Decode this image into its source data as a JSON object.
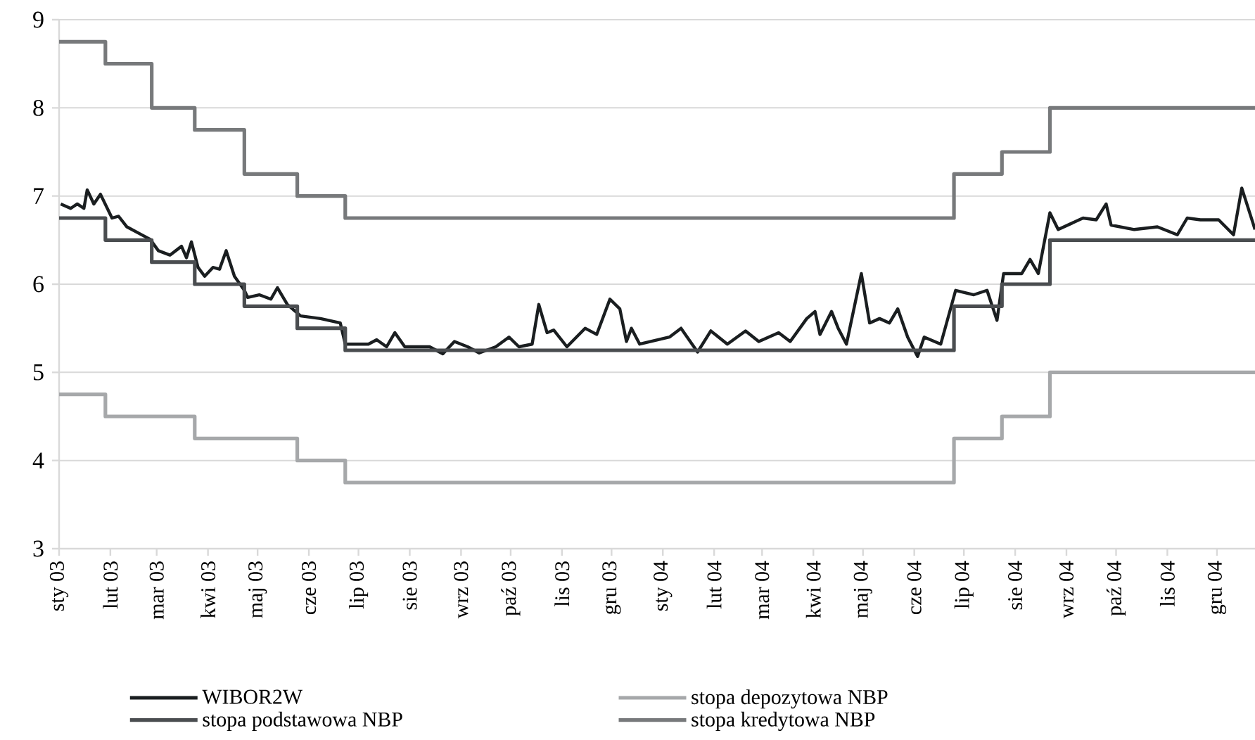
{
  "chart_data": {
    "type": "line",
    "xlim": [
      "2003-01-01",
      "2004-12-24"
    ],
    "ylim": [
      3,
      9
    ],
    "yticks": [
      3,
      4,
      5,
      6,
      7,
      8,
      9
    ],
    "xticks": [
      {
        "value": "2003-01-01",
        "label": "sty 03"
      },
      {
        "value": "2003-02-01",
        "label": "lut 03"
      },
      {
        "value": "2003-03-01",
        "label": "mar 03"
      },
      {
        "value": "2003-04-01",
        "label": "kwi 03"
      },
      {
        "value": "2003-05-01",
        "label": "maj 03"
      },
      {
        "value": "2003-06-01",
        "label": "cze 03"
      },
      {
        "value": "2003-07-01",
        "label": "lip 03"
      },
      {
        "value": "2003-08-01",
        "label": "sie 03"
      },
      {
        "value": "2003-09-01",
        "label": "wrz 03"
      },
      {
        "value": "2003-10-01",
        "label": "paź 03"
      },
      {
        "value": "2003-11-01",
        "label": "lis 03"
      },
      {
        "value": "2003-12-01",
        "label": "gru 03"
      },
      {
        "value": "2004-01-01",
        "label": "sty 04"
      },
      {
        "value": "2004-02-01",
        "label": "lut 04"
      },
      {
        "value": "2004-03-01",
        "label": "mar 04"
      },
      {
        "value": "2004-04-01",
        "label": "kwi 04"
      },
      {
        "value": "2004-05-01",
        "label": "maj 04"
      },
      {
        "value": "2004-06-01",
        "label": "cze 04"
      },
      {
        "value": "2004-07-01",
        "label": "lip 04"
      },
      {
        "value": "2004-08-01",
        "label": "sie 04"
      },
      {
        "value": "2004-09-01",
        "label": "wrz 04"
      },
      {
        "value": "2004-10-01",
        "label": "paź 04"
      },
      {
        "value": "2004-11-01",
        "label": "lis 04"
      },
      {
        "value": "2004-12-01",
        "label": "gru 04"
      }
    ],
    "grid": "y",
    "legend": "bottom",
    "series": [
      {
        "name": "WIBOR2W",
        "color": "#1a1e20",
        "x": [
          "2003-01-02",
          "2003-01-08",
          "2003-01-12",
          "2003-01-16",
          "2003-01-18",
          "2003-01-22",
          "2003-01-26",
          "2003-02-02",
          "2003-02-06",
          "2003-02-11",
          "2003-02-20",
          "2003-02-25",
          "2003-03-02",
          "2003-03-09",
          "2003-03-16",
          "2003-03-19",
          "2003-03-22",
          "2003-03-26",
          "2003-03-30",
          "2003-04-04",
          "2003-04-08",
          "2003-04-12",
          "2003-04-17",
          "2003-04-23",
          "2003-04-25",
          "2003-05-02",
          "2003-05-09",
          "2003-05-13",
          "2003-05-19",
          "2003-05-27",
          "2003-06-08",
          "2003-06-20",
          "2003-06-23",
          "2003-07-07",
          "2003-07-12",
          "2003-07-18",
          "2003-07-23",
          "2003-07-29",
          "2003-08-13",
          "2003-08-21",
          "2003-08-28",
          "2003-09-05",
          "2003-09-12",
          "2003-09-22",
          "2003-09-30",
          "2003-10-06",
          "2003-10-14",
          "2003-10-18",
          "2003-10-23",
          "2003-10-27",
          "2003-11-04",
          "2003-11-15",
          "2003-11-22",
          "2003-11-30",
          "2003-12-06",
          "2003-12-10",
          "2003-12-13",
          "2003-12-18",
          "2004-01-05",
          "2004-01-12",
          "2004-01-22",
          "2004-01-30",
          "2004-02-09",
          "2004-02-20",
          "2004-02-28",
          "2004-03-11",
          "2004-03-18",
          "2004-03-28",
          "2004-04-02",
          "2004-04-05",
          "2004-04-12",
          "2004-04-16",
          "2004-04-21",
          "2004-04-30",
          "2004-05-05",
          "2004-05-11",
          "2004-05-17",
          "2004-05-22",
          "2004-05-28",
          "2004-06-03",
          "2004-06-07",
          "2004-06-17",
          "2004-06-26",
          "2004-07-07",
          "2004-07-15",
          "2004-07-21",
          "2004-07-25",
          "2004-08-05",
          "2004-08-10",
          "2004-08-15",
          "2004-08-22",
          "2004-08-27",
          "2004-09-11",
          "2004-09-19",
          "2004-09-25",
          "2004-09-28",
          "2004-10-12",
          "2004-10-26",
          "2004-11-07",
          "2004-11-13",
          "2004-11-21",
          "2004-12-02",
          "2004-12-11",
          "2004-12-16",
          "2004-12-24"
        ],
        "values": [
          6.91,
          6.86,
          6.91,
          6.86,
          7.07,
          6.91,
          7.02,
          6.75,
          6.77,
          6.65,
          6.56,
          6.51,
          6.38,
          6.33,
          6.43,
          6.3,
          6.48,
          6.19,
          6.09,
          6.19,
          6.17,
          6.38,
          6.09,
          5.93,
          5.85,
          5.88,
          5.83,
          5.96,
          5.77,
          5.64,
          5.61,
          5.56,
          5.32,
          5.32,
          5.37,
          5.29,
          5.45,
          5.29,
          5.29,
          5.21,
          5.35,
          5.29,
          5.22,
          5.29,
          5.4,
          5.29,
          5.32,
          5.77,
          5.45,
          5.48,
          5.29,
          5.5,
          5.43,
          5.83,
          5.72,
          5.35,
          5.5,
          5.32,
          5.4,
          5.5,
          5.23,
          5.47,
          5.32,
          5.47,
          5.35,
          5.45,
          5.35,
          5.61,
          5.69,
          5.43,
          5.69,
          5.5,
          5.32,
          6.12,
          5.56,
          5.61,
          5.56,
          5.72,
          5.4,
          5.18,
          5.4,
          5.32,
          5.93,
          5.88,
          5.93,
          5.59,
          6.12,
          6.12,
          6.28,
          6.12,
          6.81,
          6.62,
          6.75,
          6.73,
          6.91,
          6.67,
          6.62,
          6.65,
          6.56,
          6.75,
          6.73,
          6.73,
          6.56,
          7.09,
          6.62
        ]
      },
      {
        "name": "stopa depozytowa NBP",
        "type": "step",
        "color": "#a6a8aa",
        "x": [
          "2003-01-01",
          "2003-01-29",
          "2003-03-24",
          "2003-05-25",
          "2003-06-23",
          "2004-06-25",
          "2004-07-24",
          "2004-08-22",
          "2004-12-24"
        ],
        "values": [
          4.75,
          4.5,
          4.25,
          4.0,
          3.75,
          4.25,
          4.5,
          5.0,
          5.0
        ]
      },
      {
        "name": "stopa podstawowa NBP",
        "type": "step",
        "color": "#4a4d50",
        "x": [
          "2003-01-01",
          "2003-01-29",
          "2003-02-26",
          "2003-03-24",
          "2003-04-23",
          "2003-05-25",
          "2003-06-23",
          "2004-06-25",
          "2004-07-24",
          "2004-08-22",
          "2004-12-24"
        ],
        "values": [
          6.75,
          6.5,
          6.25,
          6.0,
          5.75,
          5.5,
          5.25,
          5.75,
          6.0,
          6.5,
          6.5
        ]
      },
      {
        "name": "stopa kredytowa NBP",
        "type": "step",
        "color": "#77797b",
        "x": [
          "2003-01-01",
          "2003-01-29",
          "2003-02-26",
          "2003-03-24",
          "2003-04-23",
          "2003-05-25",
          "2003-06-23",
          "2004-06-25",
          "2004-07-24",
          "2004-08-22",
          "2004-12-24"
        ],
        "values": [
          8.75,
          8.5,
          8.0,
          7.75,
          7.25,
          7.0,
          6.75,
          7.25,
          7.5,
          8.0,
          8.0
        ]
      }
    ]
  }
}
